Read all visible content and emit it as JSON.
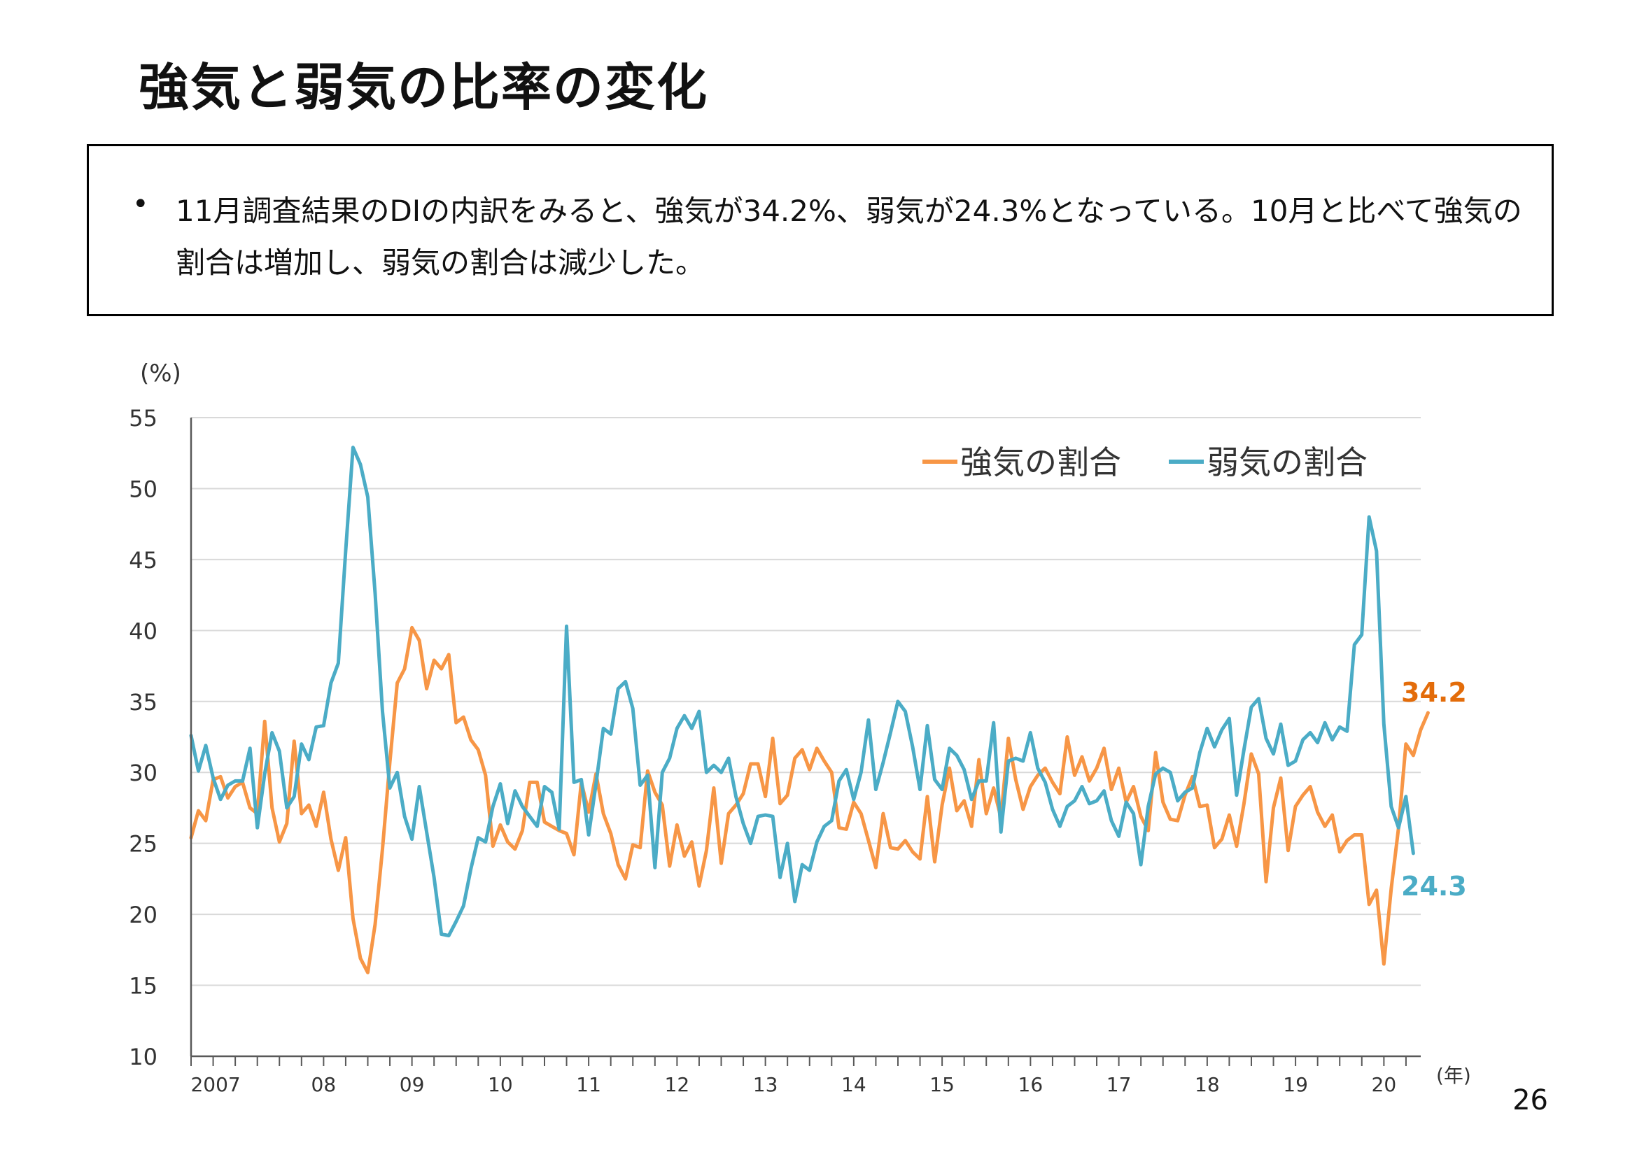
{
  "page": {
    "title": "強気と弱気の比率の変化",
    "summary": "11月調査結果のDIの内訳をみると、強気が34.2%、弱気が24.3%となっている。10月と比べて強気の割合は増加し、弱気の割合は減少した。",
    "page_number": "26"
  },
  "chart_data": {
    "type": "line",
    "title": "",
    "xlabel": "(年)",
    "ylabel": "(%)",
    "ylim": [
      10,
      55
    ],
    "yticks": [
      10,
      15,
      20,
      25,
      30,
      35,
      40,
      45,
      50,
      55
    ],
    "x_tick_labels": [
      "2007",
      "08",
      "09",
      "10",
      "11",
      "12",
      "13",
      "14",
      "15",
      "16",
      "17",
      "18",
      "19",
      "20"
    ],
    "x_range": [
      2007.0,
      2020.917
    ],
    "grid": true,
    "legend": "top-right",
    "colors": {
      "bull": "#F79646",
      "bear": "#4BACC6",
      "bull_label": "#E36C0A"
    },
    "end_labels": {
      "bull": "34.2",
      "bear": "24.3"
    },
    "series": [
      {
        "name": "強気の割合",
        "x_start": 2007.0,
        "x_step": 0.08333,
        "values": [
          25.4,
          27.3,
          26.6,
          29.5,
          29.7,
          28.2,
          29.0,
          29.3,
          27.5,
          27.1,
          33.6,
          27.5,
          25.1,
          26.4,
          32.2,
          27.1,
          27.7,
          26.2,
          28.6,
          25.3,
          23.1,
          25.4,
          19.7,
          16.9,
          15.9,
          19.3,
          24.6,
          30.7,
          36.3,
          37.3,
          40.2,
          39.3,
          35.9,
          37.9,
          37.3,
          38.3,
          33.5,
          33.9,
          32.3,
          31.6,
          29.8,
          24.8,
          26.3,
          25.1,
          24.6,
          25.9,
          29.3,
          29.3,
          26.5,
          26.2,
          25.9,
          25.7,
          24.2,
          29.3,
          27.2,
          29.9,
          27.1,
          25.7,
          23.5,
          22.5,
          24.9,
          24.7,
          30.1,
          28.6,
          27.7,
          23.4,
          26.3,
          24.1,
          25.1,
          22.0,
          24.5,
          28.9,
          23.6,
          27.1,
          27.7,
          28.5,
          30.6,
          30.6,
          28.3,
          32.4,
          27.8,
          28.4,
          31.0,
          31.6,
          30.2,
          31.7,
          30.8,
          30.0,
          26.1,
          26.0,
          27.9,
          27.1,
          25.2,
          23.3,
          27.1,
          24.7,
          24.6,
          25.2,
          24.4,
          23.9,
          28.3,
          23.7,
          27.7,
          30.3,
          27.3,
          28.0,
          26.2,
          30.9,
          27.1,
          28.9,
          26.8,
          32.4,
          29.5,
          27.4,
          29.0,
          29.8,
          30.3,
          29.3,
          28.5,
          32.5,
          29.8,
          31.1,
          29.4,
          30.3,
          31.7,
          28.8,
          30.3,
          27.9,
          29.0,
          26.9,
          25.9,
          31.4,
          27.9,
          26.7,
          26.6,
          28.4,
          29.7,
          27.6,
          27.7,
          24.7,
          25.3,
          27.0,
          24.8,
          27.8,
          31.3,
          29.9,
          22.3,
          27.5,
          29.6,
          24.5,
          27.6,
          28.4,
          29.0,
          27.2,
          26.2,
          27.0,
          24.4,
          25.2,
          25.6,
          25.6,
          20.7,
          21.7,
          16.5,
          21.8,
          26.1,
          32.0,
          31.2,
          33.0,
          34.2
        ]
      },
      {
        "name": "弱気の割合",
        "x_start": 2007.0,
        "x_step": 0.08333,
        "values": [
          32.6,
          30.1,
          31.9,
          29.6,
          28.1,
          29.1,
          29.4,
          29.4,
          31.7,
          26.1,
          29.9,
          32.8,
          31.5,
          27.5,
          28.3,
          32.0,
          30.9,
          33.2,
          33.3,
          36.3,
          37.7,
          45.6,
          52.9,
          51.7,
          49.4,
          42.6,
          34.3,
          28.9,
          30.0,
          26.9,
          25.3,
          29.0,
          25.8,
          22.6,
          18.6,
          18.5,
          19.5,
          20.6,
          23.2,
          25.4,
          25.1,
          27.6,
          29.2,
          26.4,
          28.7,
          27.6,
          26.9,
          26.2,
          29.0,
          28.6,
          26.0,
          40.3,
          29.3,
          29.5,
          25.6,
          29.2,
          33.1,
          32.7,
          35.9,
          36.4,
          34.5,
          29.1,
          29.8,
          23.3,
          30.0,
          31.0,
          33.1,
          34.0,
          33.1,
          34.3,
          30.0,
          30.5,
          30.0,
          31.0,
          28.3,
          26.4,
          25.0,
          26.9,
          27.0,
          26.9,
          22.6,
          25.0,
          20.9,
          23.5,
          23.1,
          25.1,
          26.2,
          26.6,
          29.4,
          30.2,
          28.1,
          30.0,
          33.7,
          28.8,
          30.7,
          32.8,
          35.0,
          34.3,
          31.8,
          28.8,
          33.3,
          29.5,
          28.8,
          31.7,
          31.2,
          30.2,
          28.1,
          29.4,
          29.4,
          33.5,
          25.8,
          30.8,
          31.0,
          30.8,
          32.8,
          30.3,
          29.3,
          27.4,
          26.2,
          27.6,
          28.0,
          29.0,
          27.8,
          28.0,
          28.7,
          26.6,
          25.5,
          27.9,
          27.1,
          23.5,
          27.6,
          29.9,
          30.3,
          30.0,
          28.0,
          28.6,
          28.9,
          31.4,
          33.1,
          31.8,
          33.0,
          33.8,
          28.4,
          31.6,
          34.6,
          35.2,
          32.4,
          31.3,
          33.4,
          30.5,
          30.8,
          32.3,
          32.8,
          32.1,
          33.5,
          32.3,
          33.2,
          32.9,
          39.0,
          39.7,
          48.0,
          45.6,
          33.4,
          27.6,
          26.1,
          28.3,
          24.3
        ]
      }
    ]
  }
}
